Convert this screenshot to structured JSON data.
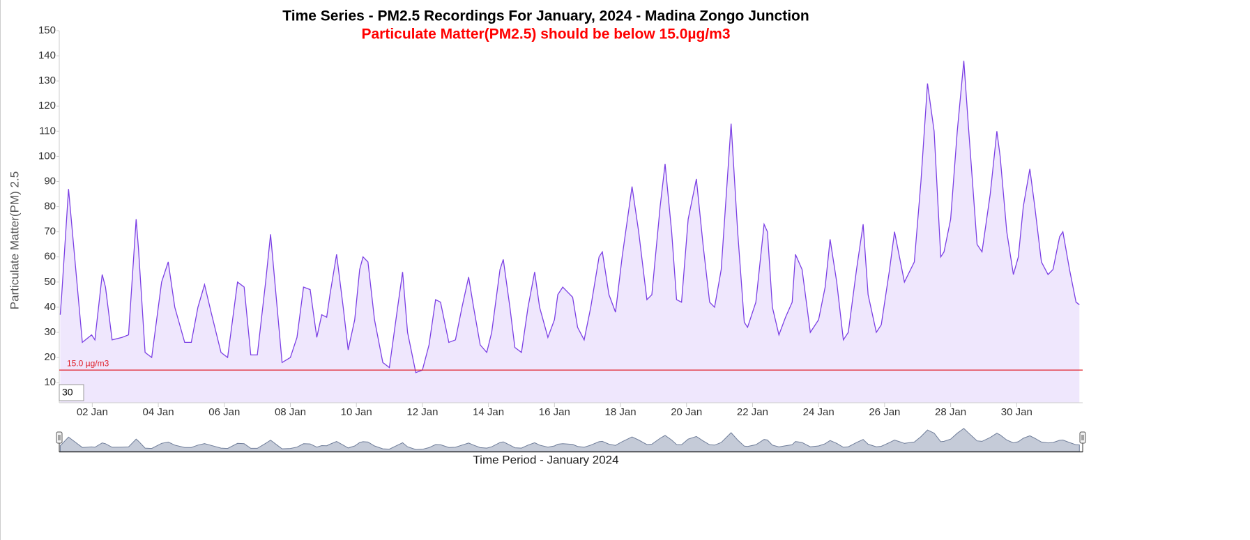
{
  "chart_data": {
    "type": "area",
    "title": "Time Series - PM2.5 Recordings For January, 2024 - Madina Zongo Junction",
    "subtitle": "Particulate Matter(PM2.5) should be below 15.0µg/m3",
    "y_label": "Particulate Matter(PM) 2.5",
    "x_label": "Time Period - January 2024",
    "x": [
      1.03,
      1.07,
      1.28,
      1.7,
      1.98,
      2.08,
      2.3,
      2.4,
      2.6,
      2.9,
      3.1,
      3.33,
      3.4,
      3.6,
      3.8,
      4.1,
      4.3,
      4.5,
      4.8,
      5.0,
      5.2,
      5.4,
      5.6,
      5.9,
      6.1,
      6.4,
      6.6,
      6.8,
      7.0,
      7.25,
      7.4,
      7.6,
      7.75,
      8.0,
      8.2,
      8.4,
      8.6,
      8.8,
      8.95,
      9.1,
      9.2,
      9.4,
      9.6,
      9.75,
      9.95,
      10.1,
      10.2,
      10.35,
      10.55,
      10.8,
      11.0,
      11.25,
      11.4,
      11.55,
      11.8,
      12.0,
      12.2,
      12.4,
      12.55,
      12.8,
      13.0,
      13.2,
      13.4,
      13.55,
      13.75,
      13.95,
      14.1,
      14.35,
      14.45,
      14.65,
      14.8,
      15.0,
      15.2,
      15.4,
      15.55,
      15.8,
      16.0,
      16.1,
      16.25,
      16.55,
      16.7,
      16.9,
      17.1,
      17.35,
      17.45,
      17.65,
      17.85,
      18.05,
      18.35,
      18.55,
      18.8,
      18.95,
      19.2,
      19.35,
      19.55,
      19.7,
      19.85,
      20.05,
      20.3,
      20.5,
      20.7,
      20.85,
      21.05,
      21.35,
      21.55,
      21.75,
      21.85,
      22.1,
      22.35,
      22.45,
      22.6,
      22.8,
      23.0,
      23.2,
      23.3,
      23.5,
      23.65,
      23.75,
      24.0,
      24.2,
      24.35,
      24.55,
      24.75,
      24.9,
      25.15,
      25.35,
      25.5,
      25.75,
      25.9,
      26.15,
      26.3,
      26.45,
      26.6,
      26.9,
      27.1,
      27.3,
      27.5,
      27.7,
      27.8,
      28.0,
      28.2,
      28.4,
      28.55,
      28.8,
      28.95,
      29.2,
      29.4,
      29.5,
      29.7,
      29.9,
      30.05,
      30.2,
      30.4,
      30.55,
      30.75,
      30.95,
      31.1,
      31.3,
      31.4,
      31.6,
      31.8,
      31.9
    ],
    "series": [
      {
        "name": "PM2.5",
        "color": "#7b3fe4",
        "fill": "#efe7fd",
        "values": [
          37,
          44,
          87,
          26,
          29,
          27,
          53,
          48,
          27,
          28,
          29,
          75,
          63,
          22,
          20,
          50,
          58,
          40,
          26,
          26,
          40,
          49,
          38,
          22,
          20,
          50,
          48,
          21,
          21,
          50,
          69,
          40,
          18,
          20,
          28,
          48,
          47,
          28,
          37,
          36,
          45,
          61,
          40,
          23,
          35,
          55,
          60,
          58,
          35,
          18,
          16,
          40,
          54,
          30,
          14,
          15,
          25,
          43,
          42,
          26,
          27,
          40,
          52,
          40,
          25,
          22,
          30,
          55,
          59,
          40,
          24,
          22,
          40,
          54,
          40,
          28,
          35,
          45,
          48,
          44,
          32,
          27,
          40,
          60,
          62,
          45,
          38,
          60,
          88,
          70,
          43,
          45,
          80,
          97,
          70,
          43,
          42,
          75,
          91,
          65,
          42,
          40,
          55,
          113,
          70,
          34,
          32,
          42,
          73,
          70,
          40,
          29,
          36,
          42,
          61,
          55,
          40,
          30,
          35,
          48,
          67,
          50,
          27,
          30,
          55,
          73,
          45,
          30,
          33,
          55,
          70,
          60,
          50,
          58,
          90,
          129,
          110,
          60,
          62,
          75,
          110,
          138,
          110,
          65,
          62,
          85,
          110,
          100,
          70,
          53,
          60,
          80,
          95,
          80,
          58,
          53,
          55,
          68,
          70,
          55,
          42,
          41
        ]
      }
    ],
    "xlim": [
      1,
      32
    ],
    "xticks": [
      {
        "value": 2,
        "label": "02 Jan"
      },
      {
        "value": 4,
        "label": "04 Jan"
      },
      {
        "value": 6,
        "label": "06 Jan"
      },
      {
        "value": 8,
        "label": "08 Jan"
      },
      {
        "value": 10,
        "label": "10 Jan"
      },
      {
        "value": 12,
        "label": "12 Jan"
      },
      {
        "value": 14,
        "label": "14 Jan"
      },
      {
        "value": 16,
        "label": "16 Jan"
      },
      {
        "value": 18,
        "label": "18 Jan"
      },
      {
        "value": 20,
        "label": "20 Jan"
      },
      {
        "value": 22,
        "label": "22 Jan"
      },
      {
        "value": 24,
        "label": "24 Jan"
      },
      {
        "value": 26,
        "label": "26 Jan"
      },
      {
        "value": 28,
        "label": "28 Jan"
      },
      {
        "value": 30,
        "label": "30 Jan"
      }
    ],
    "ylim": [
      2,
      150
    ],
    "yticks": [
      10,
      20,
      30,
      40,
      50,
      60,
      70,
      80,
      90,
      100,
      110,
      120,
      130,
      140,
      150
    ],
    "threshold": {
      "value": 15,
      "label": "15.0 µg/m3",
      "color": "#e0202a"
    },
    "range_input": "30"
  }
}
